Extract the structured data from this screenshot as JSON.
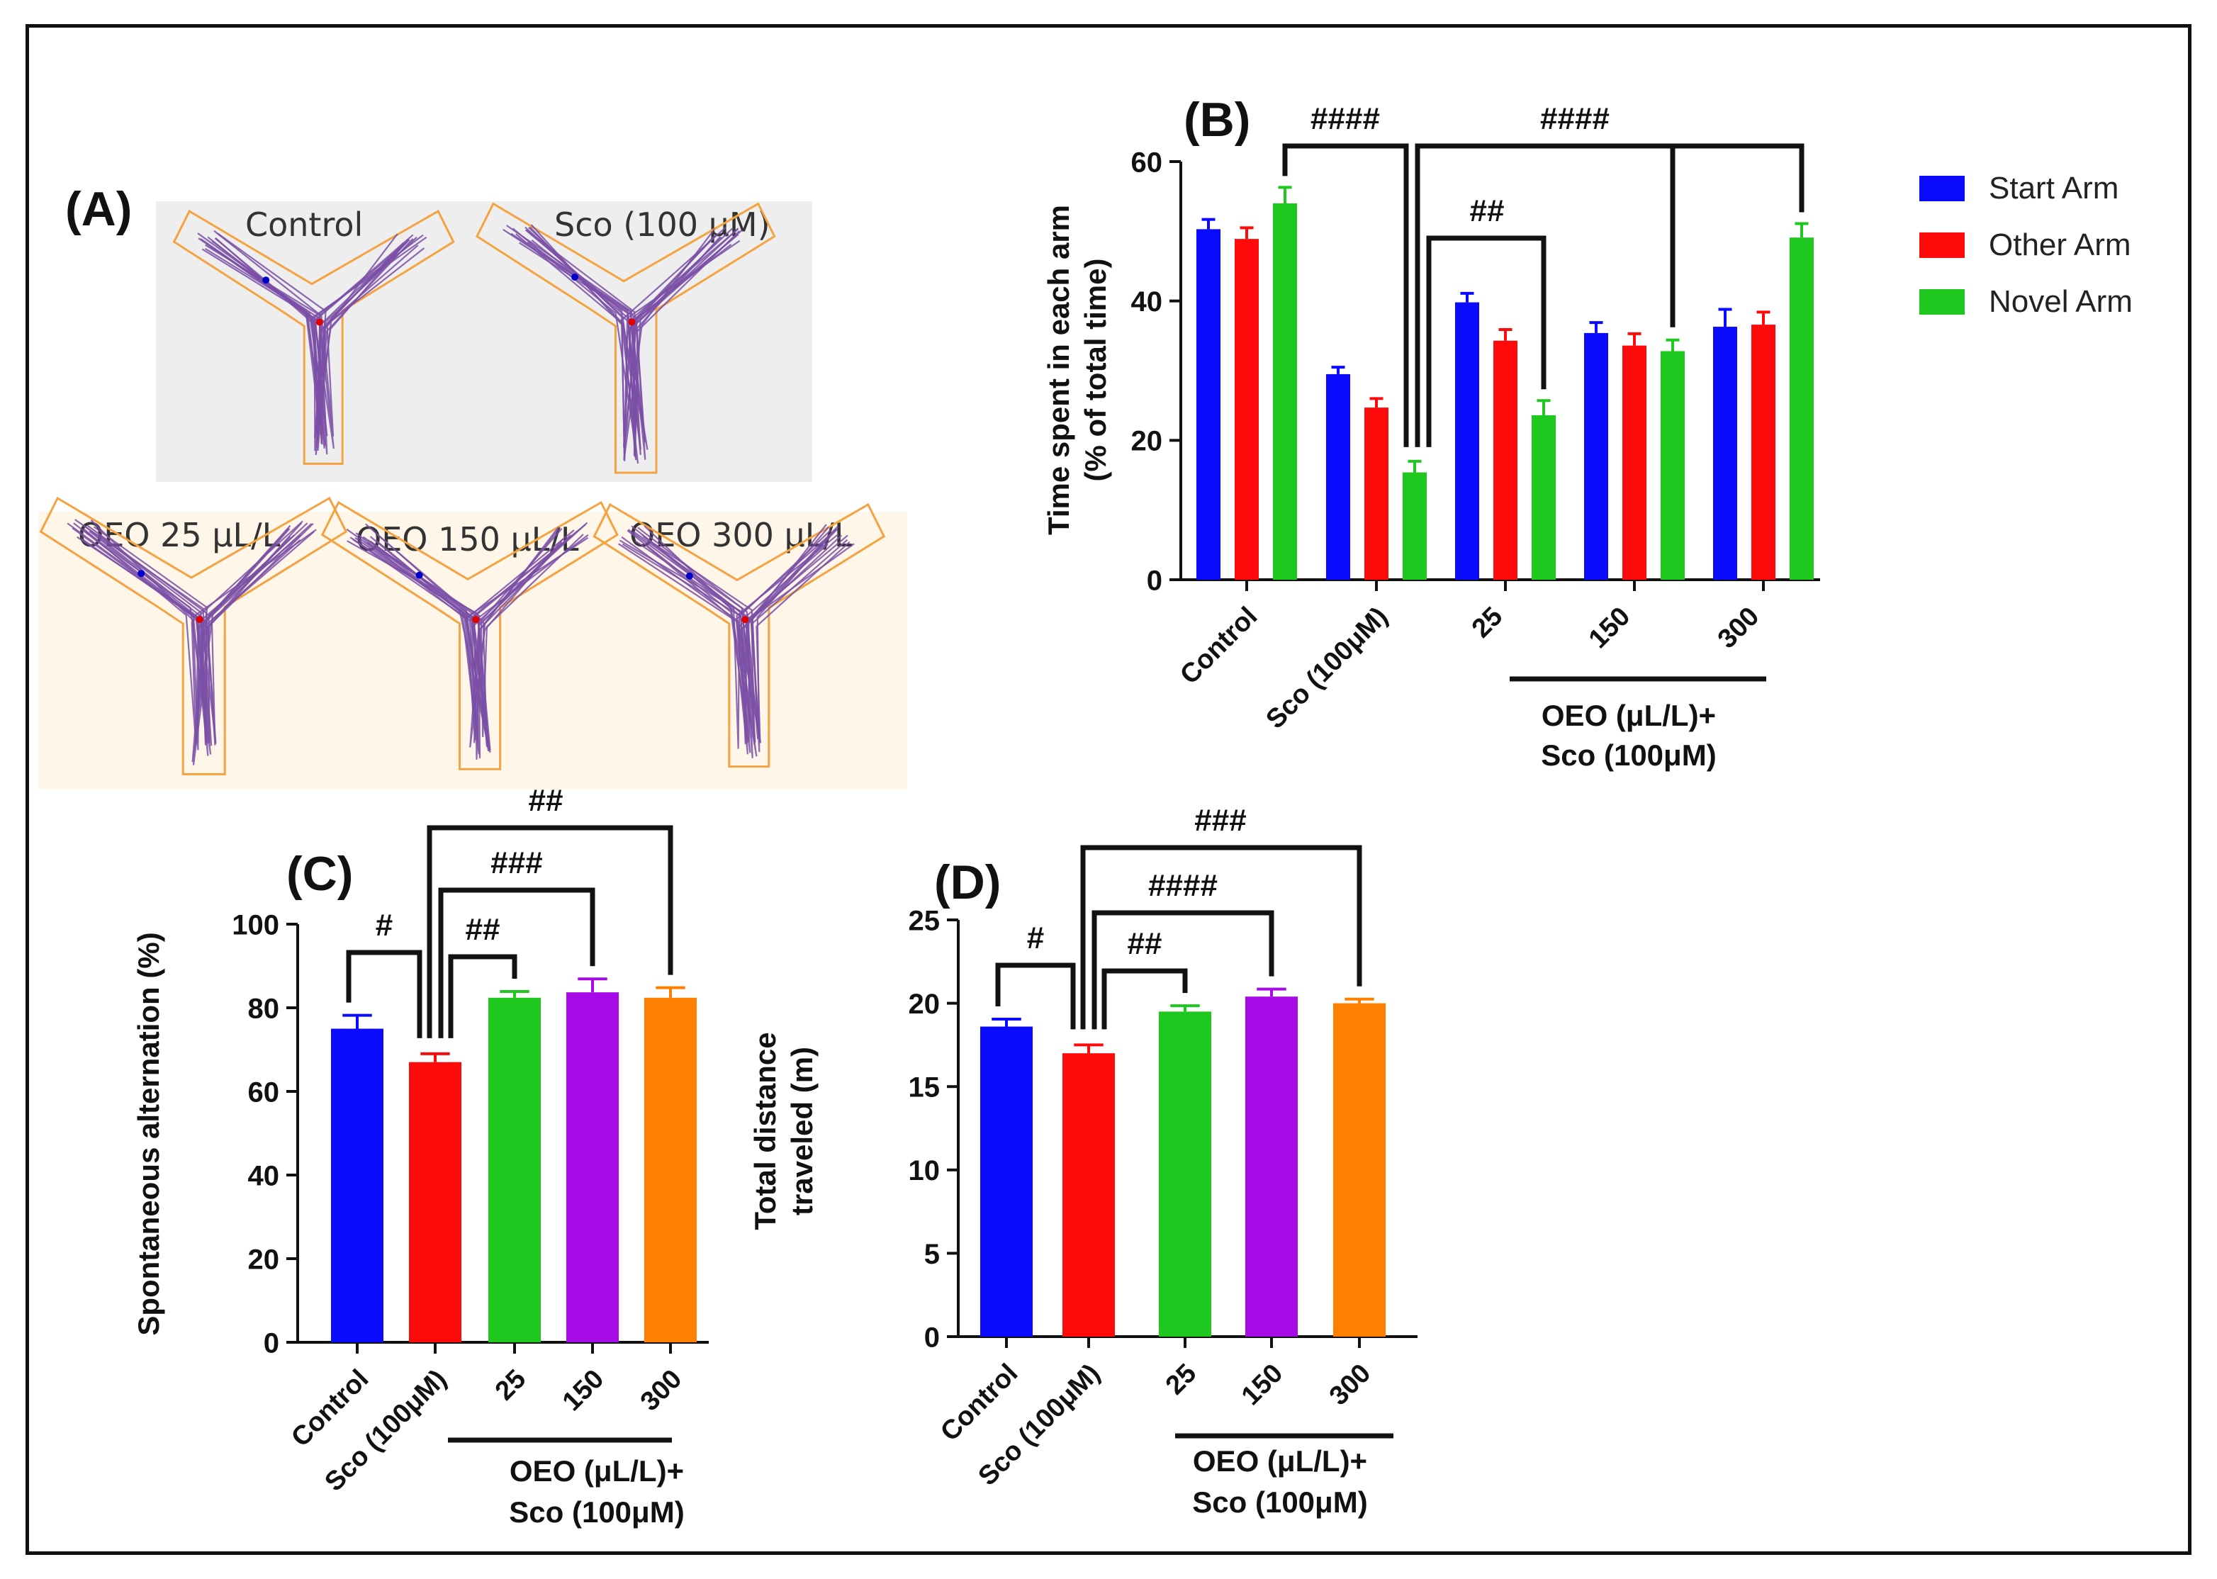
{
  "panel_a": {
    "letter": "(A)",
    "track_labels": [
      "Control",
      "Sco (100 µM)",
      "OEO 25 µL/L",
      "OEO 150 µL/L",
      "OEO 300 µL/L"
    ]
  },
  "colors": {
    "blue": "#0a0aff",
    "red": "#ff0a0a",
    "green": "#1ec81e",
    "purple": "#a60ae6",
    "orange": "#ff8000",
    "path": "#7a4fa6",
    "arm_outline": "#f4a340"
  },
  "chart_data": [
    {
      "panel": "(B)",
      "type": "bar",
      "ylabel_line1": "Time spent in each arm",
      "ylabel_line2": "(% of total time)",
      "ylim": [
        0,
        60
      ],
      "yticks": [
        "0",
        "20",
        "40",
        "60"
      ],
      "categories": [
        "Control",
        "Sco (100μM)",
        "25",
        "150",
        "300"
      ],
      "group_label_line1": "OEO (μL/L)+",
      "group_label_line2": "Sco (100μM)",
      "series": [
        {
          "name": "Start Arm",
          "color": "#0a0aff",
          "values": [
            50.3,
            29.5,
            39.8,
            35.4,
            36.3
          ],
          "errors": [
            1.4,
            1.0,
            1.3,
            1.5,
            2.5
          ]
        },
        {
          "name": "Other Arm",
          "color": "#ff0a0a",
          "values": [
            48.9,
            24.7,
            34.3,
            33.6,
            36.6
          ],
          "errors": [
            1.6,
            1.3,
            1.6,
            1.7,
            1.8
          ]
        },
        {
          "name": "Novel Arm",
          "color": "#1ec81e",
          "values": [
            54.0,
            15.4,
            23.6,
            32.8,
            49.1
          ],
          "errors": [
            2.3,
            1.6,
            2.1,
            1.6,
            2.0
          ]
        }
      ],
      "significance": [
        "####",
        "##",
        "####"
      ]
    },
    {
      "panel": "(C)",
      "type": "bar",
      "ylabel": "Spontaneous alternation (%)",
      "ylim": [
        0,
        100
      ],
      "yticks": [
        "0",
        "20",
        "40",
        "60",
        "80",
        "100"
      ],
      "categories": [
        "Control",
        "Sco (100μM)",
        "25",
        "150",
        "300"
      ],
      "group_label_line1": "OEO (μL/L)+",
      "group_label_line2": "Sco (100μM)",
      "values": [
        75.0,
        67.0,
        82.4,
        83.7,
        82.4
      ],
      "errors": [
        3.2,
        2.0,
        1.5,
        3.2,
        2.4
      ],
      "bar_colors": [
        "#0a0aff",
        "#ff0a0a",
        "#1ec81e",
        "#a60ae6",
        "#ff8000"
      ],
      "significance": [
        "#",
        "##",
        "###",
        "##"
      ]
    },
    {
      "panel": "(D)",
      "type": "bar",
      "ylabel_line1": "Total distance",
      "ylabel_line2": "traveled (m)",
      "ylim": [
        0,
        25
      ],
      "yticks": [
        "0",
        "5",
        "10",
        "15",
        "20",
        "25"
      ],
      "categories": [
        "Control",
        "Sco (100μM)",
        "25",
        "150",
        "300"
      ],
      "group_label_line1": "OEO (μL/L)+",
      "group_label_line2": "Sco (100μM)",
      "values": [
        18.6,
        17.0,
        19.5,
        20.4,
        20.0
      ],
      "errors": [
        0.45,
        0.5,
        0.35,
        0.45,
        0.25
      ],
      "bar_colors": [
        "#0a0aff",
        "#ff0a0a",
        "#1ec81e",
        "#a60ae6",
        "#ff8000"
      ],
      "significance": [
        "#",
        "##",
        "####",
        "###"
      ]
    }
  ]
}
